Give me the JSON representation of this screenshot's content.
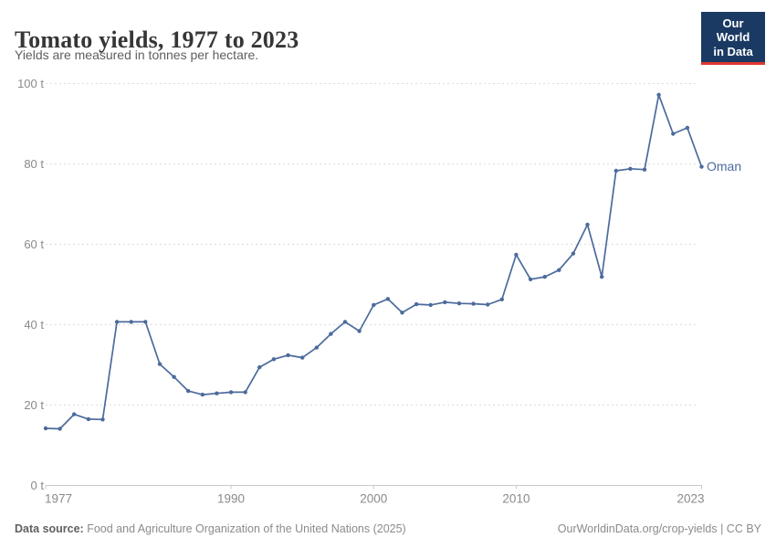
{
  "header": {
    "title": "Tomato yields, 1977 to 2023",
    "subtitle": "Yields are measured in tonnes per hectare."
  },
  "logo": {
    "line1": "Our World",
    "line2": "in Data",
    "bg_color": "#1a3a63",
    "accent_color": "#e0372d",
    "text_color": "#ffffff"
  },
  "chart_data": {
    "type": "line",
    "title": "Tomato yields, 1977 to 2023",
    "unit": "tonnes per hectare",
    "xlabel": "",
    "ylabel": "",
    "xlim": [
      1977,
      2023
    ],
    "ylim": [
      0,
      100
    ],
    "grid": "horizontal dashed",
    "legend_position": "end-of-line label",
    "yticks": [
      0,
      20,
      40,
      60,
      80,
      100
    ],
    "ytick_labels": [
      "0 t",
      "20 t",
      "40 t",
      "60 t",
      "80 t",
      "100 t"
    ],
    "xticks": [
      1977,
      1990,
      2000,
      2010,
      2023
    ],
    "xtick_labels": [
      "1977",
      "1990",
      "2000",
      "2010",
      "2023"
    ],
    "colors": {
      "series": "#4c6a9c",
      "grid": "#dcdcdc",
      "axis": "#c9c9c9",
      "tick_text": "#8a8a8a"
    },
    "series": [
      {
        "name": "Oman",
        "color": "#4c6a9c",
        "x": [
          1977,
          1978,
          1979,
          1980,
          1981,
          1982,
          1983,
          1984,
          1985,
          1986,
          1987,
          1988,
          1989,
          1990,
          1991,
          1992,
          1993,
          1994,
          1995,
          1996,
          1997,
          1998,
          1999,
          2000,
          2001,
          2002,
          2003,
          2004,
          2005,
          2006,
          2007,
          2008,
          2009,
          2010,
          2011,
          2012,
          2013,
          2014,
          2015,
          2016,
          2017,
          2018,
          2019,
          2020,
          2021,
          2022,
          2023
        ],
        "values": [
          14.2,
          14.1,
          17.7,
          16.5,
          16.4,
          40.7,
          40.7,
          40.7,
          30.2,
          27.0,
          23.5,
          22.6,
          22.9,
          23.2,
          23.2,
          29.4,
          31.4,
          32.4,
          31.8,
          34.3,
          37.7,
          40.7,
          38.4,
          44.9,
          46.4,
          43.0,
          45.1,
          44.9,
          45.6,
          45.3,
          45.2,
          45.0,
          46.3,
          57.4,
          51.3,
          51.9,
          53.6,
          57.7,
          64.9,
          51.9,
          78.3,
          78.8,
          78.6,
          97.2,
          87.5,
          89.0,
          79.3
        ]
      }
    ]
  },
  "footer": {
    "source_label": "Data source:",
    "source_text": " Food and Agriculture Organization of the United Nations (2025)",
    "credit": "OurWorldinData.org/crop-yields | CC BY"
  }
}
